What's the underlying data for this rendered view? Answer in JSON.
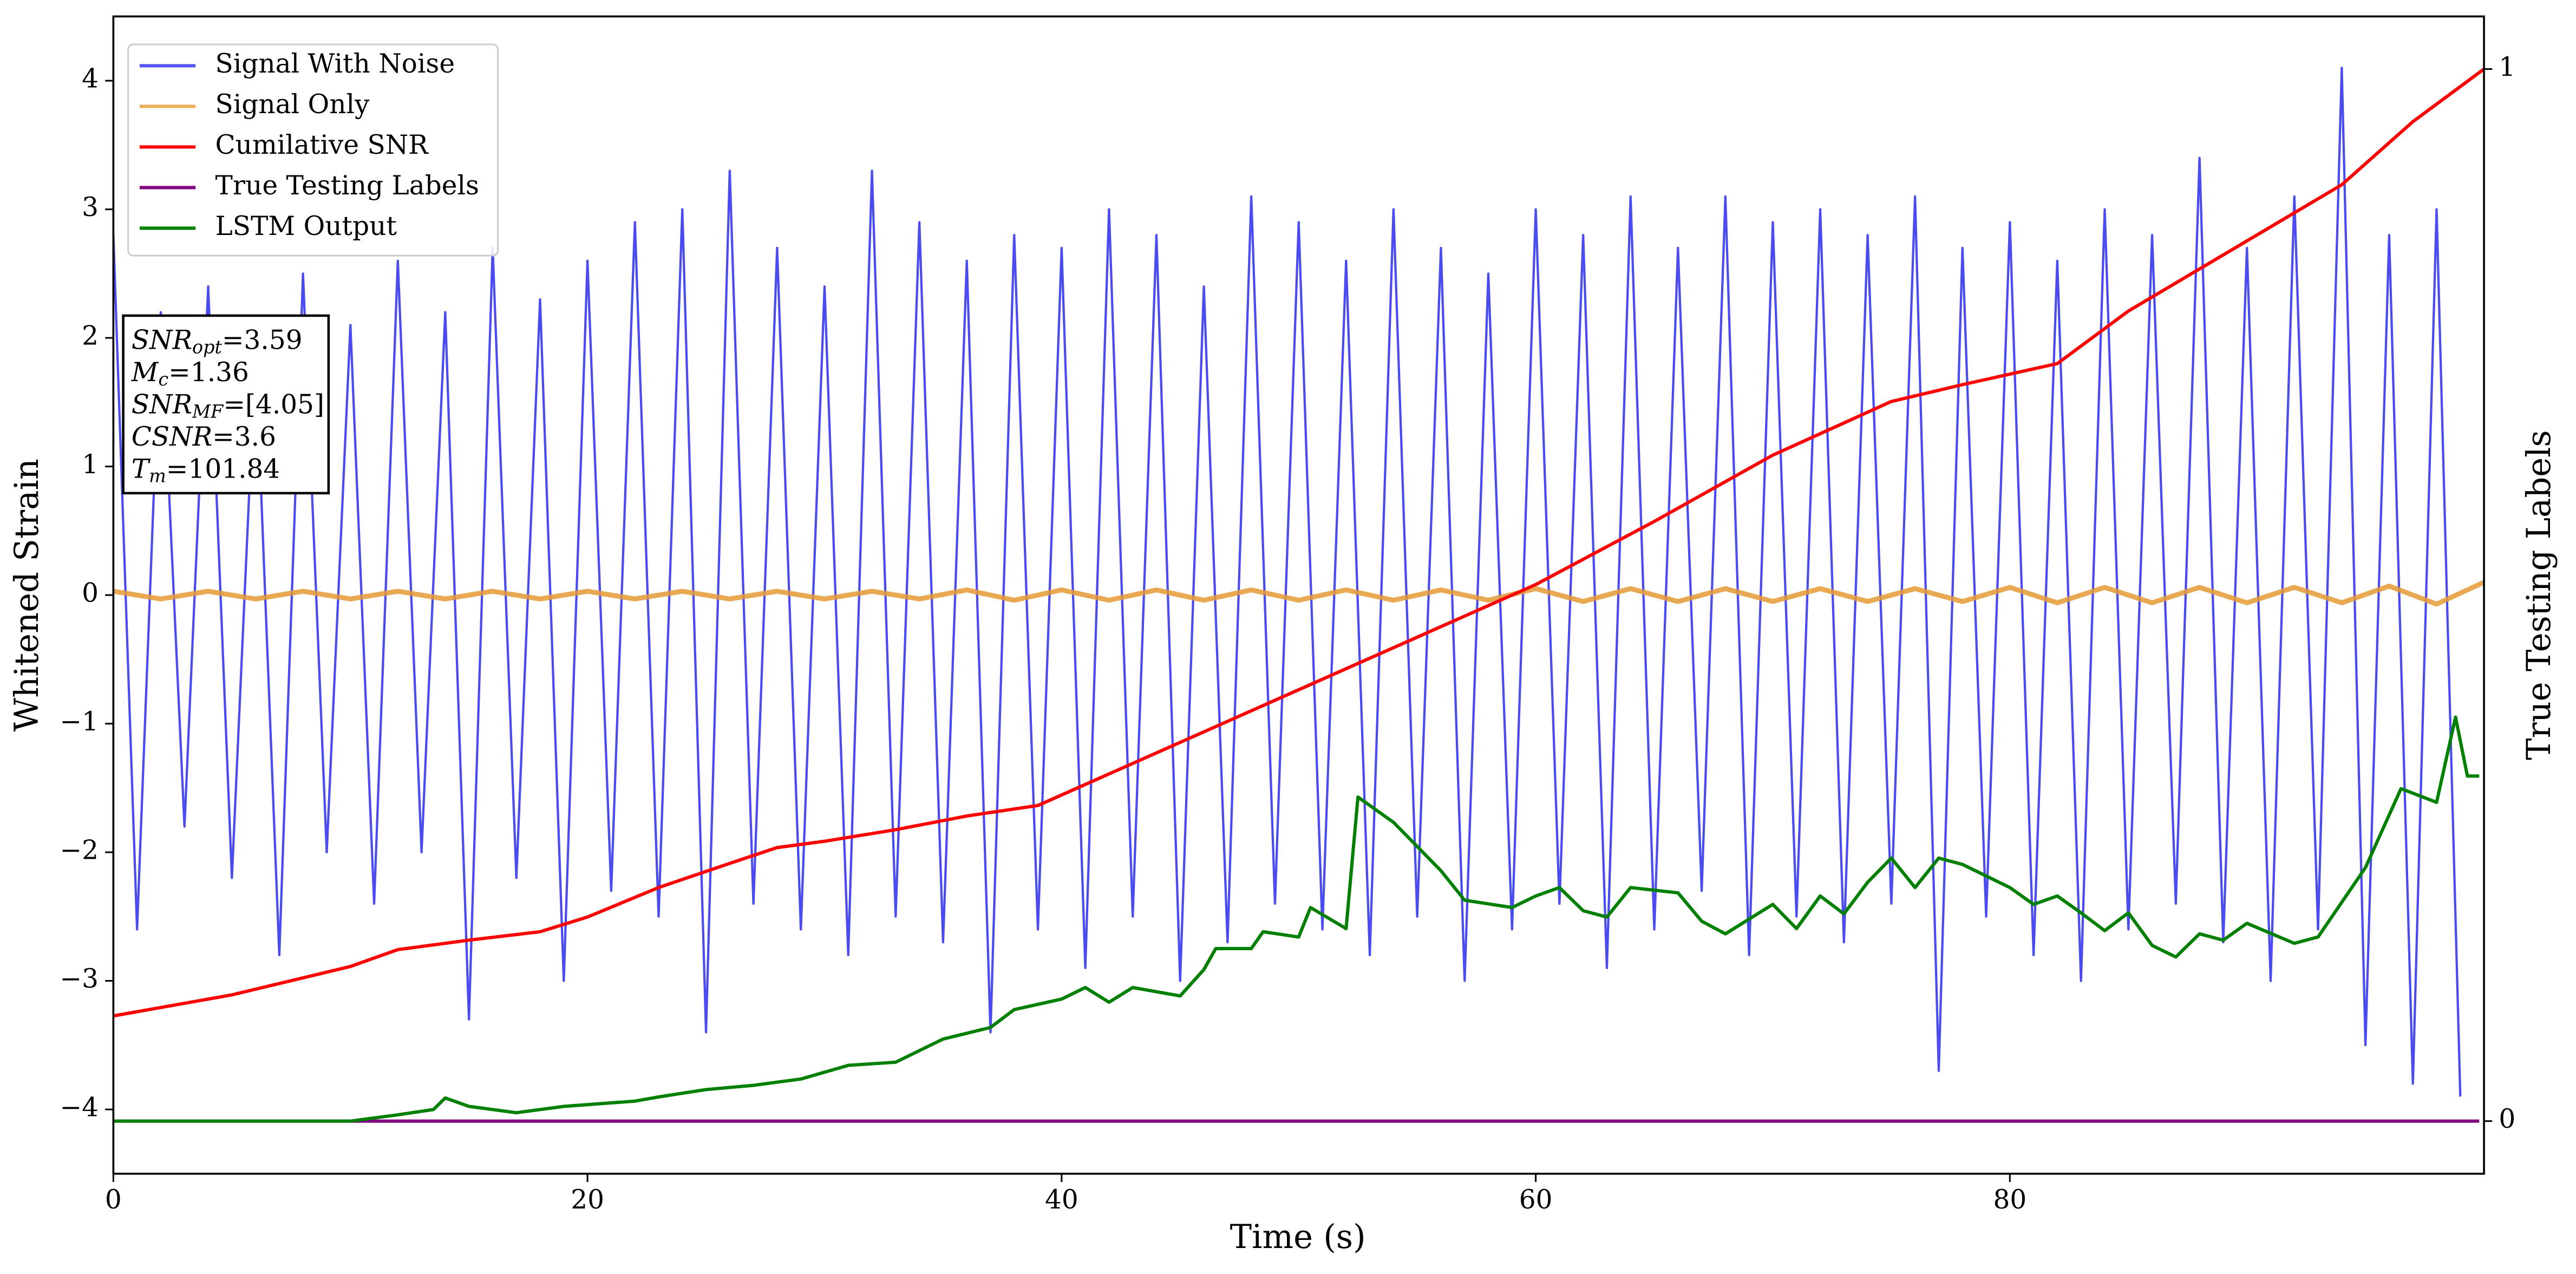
{
  "chart_data": {
    "type": "line",
    "xlabel": "Time (s)",
    "ylabel": "Whitened Strain",
    "y2label": "True Testing Labels",
    "xlim": [
      0,
      100
    ],
    "ylim": [
      -4.5,
      4.5
    ],
    "y2lim": [
      -0.05,
      1.05
    ],
    "xticks": [
      0,
      20,
      40,
      60,
      80
    ],
    "yticks": [
      {
        "value": -4,
        "label": "−4"
      },
      {
        "value": -3,
        "label": "−3"
      },
      {
        "value": -2,
        "label": "−2"
      },
      {
        "value": -1,
        "label": "−1"
      },
      0,
      1,
      2,
      3,
      4
    ],
    "y2ticks": [
      0,
      1
    ],
    "grid": false,
    "legend": "upper left",
    "series": [
      {
        "name": "Signal With Noise",
        "color": "#2b2bf0",
        "x": [
          0,
          1,
          2,
          3,
          4,
          5,
          6,
          7,
          8,
          9,
          10,
          11,
          12,
          13,
          14,
          15,
          16,
          17,
          18,
          19,
          20,
          21,
          22,
          23,
          24,
          25,
          26,
          27,
          28,
          29,
          30,
          31,
          32,
          33,
          34,
          35,
          36,
          37,
          38,
          39,
          40,
          41,
          42,
          43,
          44,
          45,
          46,
          47,
          48,
          49,
          50,
          51,
          52,
          53,
          54,
          55,
          56,
          57,
          58,
          59,
          60,
          61,
          62,
          63,
          64,
          65,
          66,
          67,
          68,
          69,
          70,
          71,
          72,
          73,
          74,
          75,
          76,
          77,
          78,
          79,
          80,
          81,
          82,
          83,
          84,
          85,
          86,
          87,
          88,
          89,
          90,
          91,
          92,
          93,
          94,
          95,
          96,
          97,
          98,
          99
        ],
        "values": [
          2.8,
          -2.6,
          2.2,
          -1.8,
          2.4,
          -2.2,
          1.9,
          -2.8,
          2.5,
          -2.0,
          2.1,
          -2.4,
          2.6,
          -2.0,
          2.2,
          -3.3,
          2.7,
          -2.2,
          2.3,
          -3.0,
          2.6,
          -2.3,
          2.9,
          -2.5,
          3.0,
          -3.4,
          3.3,
          -2.4,
          2.7,
          -2.6,
          2.4,
          -2.8,
          3.3,
          -2.5,
          2.9,
          -2.7,
          2.6,
          -3.4,
          2.8,
          -2.6,
          2.7,
          -2.9,
          3.0,
          -2.5,
          2.8,
          -3.0,
          2.4,
          -2.7,
          3.1,
          -2.4,
          2.9,
          -2.6,
          2.6,
          -2.8,
          3.0,
          -2.5,
          2.7,
          -3.0,
          2.5,
          -2.6,
          3.0,
          -2.4,
          2.8,
          -2.9,
          3.1,
          -2.6,
          2.7,
          -2.3,
          3.1,
          -2.8,
          2.9,
          -2.5,
          3.0,
          -2.7,
          2.8,
          -2.4,
          3.1,
          -3.7,
          2.7,
          -2.5,
          2.9,
          -2.8,
          2.6,
          -3.0,
          3.0,
          -2.6,
          2.8,
          -2.4,
          3.4,
          -2.7,
          2.7,
          -3.0,
          3.1,
          -2.6,
          4.1,
          -3.5,
          2.8,
          -3.8,
          3.0,
          -3.9
        ]
      },
      {
        "name": "Signal Only",
        "color": "#e59a35",
        "x": [
          0,
          2,
          4,
          6,
          8,
          10,
          12,
          14,
          16,
          18,
          20,
          22,
          24,
          26,
          28,
          30,
          32,
          34,
          36,
          38,
          40,
          42,
          44,
          46,
          48,
          50,
          52,
          54,
          56,
          58,
          60,
          62,
          64,
          66,
          68,
          70,
          72,
          74,
          76,
          78,
          80,
          82,
          84,
          86,
          88,
          90,
          92,
          94,
          96,
          98,
          100
        ],
        "values": [
          0.03,
          -0.03,
          0.03,
          -0.03,
          0.03,
          -0.03,
          0.03,
          -0.03,
          0.03,
          -0.03,
          0.03,
          -0.03,
          0.03,
          -0.03,
          0.03,
          -0.03,
          0.03,
          -0.03,
          0.04,
          -0.04,
          0.04,
          -0.04,
          0.04,
          -0.04,
          0.04,
          -0.04,
          0.04,
          -0.04,
          0.04,
          -0.04,
          0.05,
          -0.05,
          0.05,
          -0.05,
          0.05,
          -0.05,
          0.05,
          -0.05,
          0.05,
          -0.05,
          0.06,
          -0.06,
          0.06,
          -0.06,
          0.06,
          -0.06,
          0.06,
          -0.06,
          0.07,
          -0.07,
          0.1
        ]
      },
      {
        "name": "Cumilative SNR",
        "color": "#ff0000",
        "axis": "y2",
        "x": [
          0,
          5,
          10,
          12,
          15,
          18,
          20,
          23,
          26,
          28,
          30,
          33,
          36,
          39,
          42,
          45,
          50,
          55,
          60,
          65,
          70,
          75,
          78,
          82,
          85,
          88,
          91,
          94,
          97,
          100
        ],
        "values": [
          0.1,
          0.12,
          0.147,
          0.163,
          0.172,
          0.18,
          0.194,
          0.222,
          0.245,
          0.26,
          0.266,
          0.277,
          0.29,
          0.3,
          0.33,
          0.36,
          0.41,
          0.46,
          0.51,
          0.57,
          0.633,
          0.684,
          0.7,
          0.72,
          0.77,
          0.81,
          0.85,
          0.89,
          0.95,
          1.0
        ]
      },
      {
        "name": "True Testing Labels",
        "color": "#800080",
        "axis": "y2",
        "x": [
          0,
          99.8
        ],
        "values": [
          0,
          0
        ]
      },
      {
        "name": "LSTM Output",
        "color": "#008000",
        "axis": "y2",
        "x": [
          0,
          10,
          12,
          13.5,
          14,
          15,
          17,
          19,
          22,
          23,
          25,
          27,
          29,
          31,
          33,
          35,
          37,
          38,
          40,
          41,
          42,
          43,
          45,
          46,
          46.5,
          48,
          48.5,
          50,
          50.5,
          52,
          52.5,
          54,
          56,
          57,
          59,
          60,
          61,
          62,
          63,
          64,
          66,
          67,
          68,
          70,
          71,
          72,
          73,
          74,
          75,
          76,
          77,
          78,
          80,
          81,
          82,
          83,
          84,
          85,
          86,
          87,
          88,
          89,
          90,
          92,
          93,
          95,
          96.5,
          98,
          98.8,
          99.3,
          99.8
        ],
        "values": [
          0,
          0,
          0.006,
          0.011,
          0.022,
          0.014,
          0.008,
          0.014,
          0.019,
          0.023,
          0.03,
          0.034,
          0.04,
          0.053,
          0.056,
          0.078,
          0.089,
          0.106,
          0.116,
          0.127,
          0.113,
          0.127,
          0.119,
          0.144,
          0.164,
          0.164,
          0.18,
          0.175,
          0.203,
          0.183,
          0.308,
          0.284,
          0.238,
          0.21,
          0.203,
          0.214,
          0.222,
          0.2,
          0.194,
          0.222,
          0.217,
          0.19,
          0.178,
          0.206,
          0.183,
          0.214,
          0.197,
          0.227,
          0.25,
          0.222,
          0.25,
          0.244,
          0.222,
          0.206,
          0.214,
          0.198,
          0.181,
          0.198,
          0.167,
          0.156,
          0.178,
          0.172,
          0.188,
          0.169,
          0.175,
          0.241,
          0.316,
          0.303,
          0.384,
          0.328,
          0.328
        ]
      }
    ],
    "annotation": [
      {
        "symbol": "SNR",
        "sub": "opt",
        "text": "=3.59"
      },
      {
        "symbol": "M",
        "sub": "c",
        "text": "=1.36"
      },
      {
        "symbol": "SNR",
        "sub": "MF",
        "text": "=[4.05]"
      },
      {
        "symbol": "CSNR",
        "text": "=3.6"
      },
      {
        "symbol": "T",
        "sub": "m",
        "text": "=101.84"
      }
    ]
  }
}
